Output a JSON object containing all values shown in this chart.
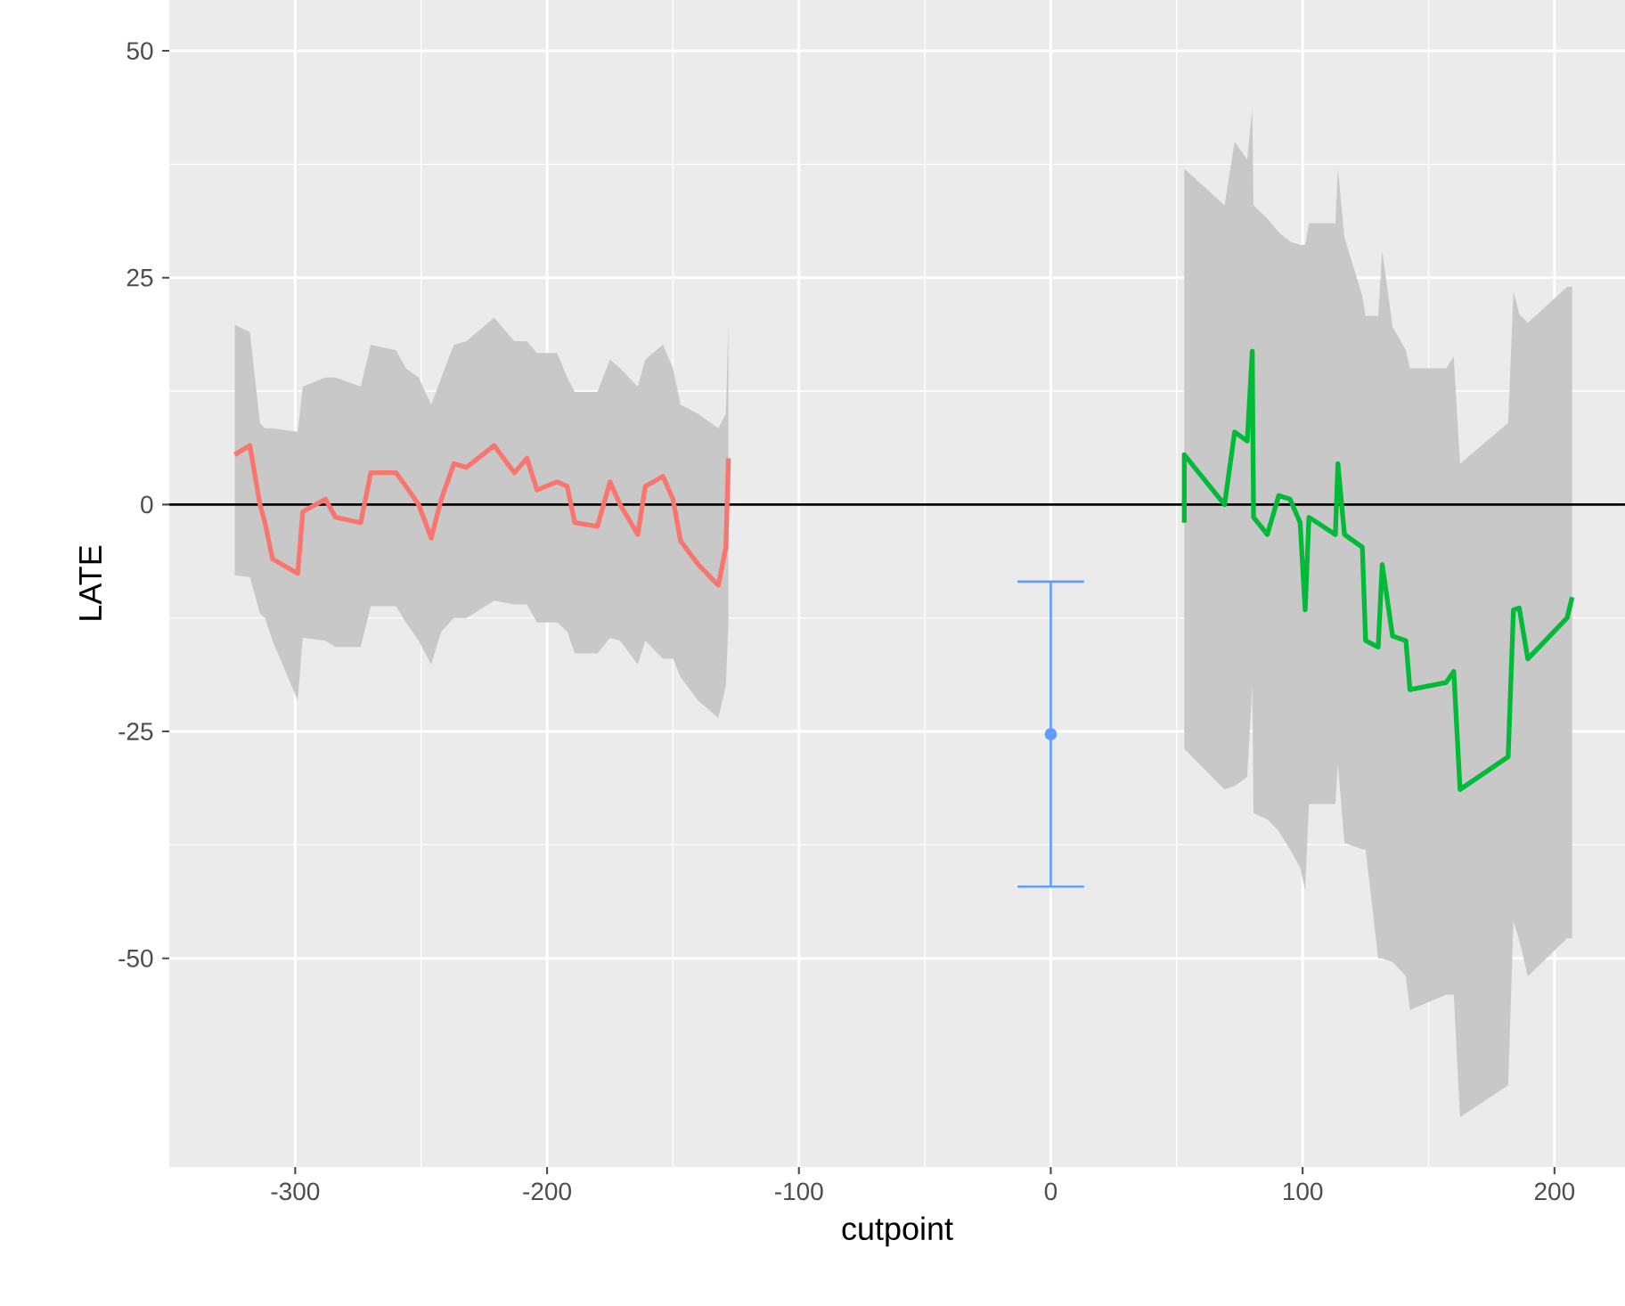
{
  "chart_data": {
    "type": "line",
    "xlabel": "cutpoint",
    "ylabel": "LATE",
    "xlim": [
      -350,
      228
    ],
    "ylim": [
      -73,
      55.6
    ],
    "xticks": [
      -300,
      -200,
      -100,
      0,
      100,
      200
    ],
    "yticks": [
      -50,
      -25,
      0,
      25,
      50
    ],
    "grid": true,
    "ref_lines": [
      {
        "axis": "y",
        "value": 0,
        "color": "#000000"
      }
    ],
    "series": [
      {
        "color": "#f8766d",
        "marker": "none",
        "x": [
          -324,
          -318,
          -314,
          -312,
          -309,
          -299,
          -297,
          -288,
          -284,
          -274,
          -270,
          -260,
          -256,
          -251,
          -246,
          -242,
          -237,
          -232,
          -221,
          -213,
          -208,
          -204,
          -196,
          -192,
          -189,
          -180,
          -175,
          -171,
          -164,
          -161,
          -154,
          -150,
          -147,
          -140,
          -132,
          -129,
          -128
        ],
        "values": [
          5.5,
          6.5,
          0,
          -2,
          -6,
          -7.6,
          -0.8,
          0.6,
          -1.4,
          -2,
          3.5,
          3.5,
          2,
          0,
          -3.7,
          0.6,
          4.5,
          4.1,
          6.5,
          3.5,
          5.1,
          1.6,
          2.5,
          2,
          -2,
          -2.4,
          2.5,
          0,
          -3.3,
          2,
          3.1,
          0.6,
          -4,
          -6.6,
          -8.9,
          -4.7,
          5.1
        ],
        "upper": [
          19.8,
          19,
          9,
          8.4,
          8.4,
          8,
          13,
          14,
          14,
          13,
          17.6,
          17,
          15,
          14,
          11,
          14,
          17.6,
          18,
          20.6,
          18,
          18,
          16.7,
          16.7,
          14,
          12.4,
          12.4,
          16,
          15,
          13,
          16,
          17.6,
          15,
          11,
          10,
          8.4,
          10,
          20
        ],
        "lower": [
          -7.8,
          -8,
          -12,
          -12.5,
          -15,
          -21.6,
          -14.7,
          -15,
          -15.7,
          -15.7,
          -11.2,
          -11.2,
          -13,
          -15,
          -17.6,
          -14,
          -12.5,
          -12.5,
          -10.6,
          -11,
          -11,
          -13,
          -13,
          -14,
          -16.4,
          -16.4,
          -14.7,
          -15,
          -17.6,
          -15,
          -17,
          -17,
          -19,
          -21.6,
          -23.5,
          -20,
          -13
        ]
      },
      {
        "color": "#00ba38",
        "marker": "none",
        "x": [
          53,
          53,
          69,
          73,
          78,
          80,
          80.5,
          86,
          90.5,
          95,
          99,
          101,
          102.5,
          113,
          114,
          116.6,
          123.7,
          125,
          130,
          131.6,
          135.7,
          141,
          142.6,
          157,
          160,
          162.5,
          181.6,
          183.7,
          186,
          189.4,
          205,
          207
        ],
        "values": [
          -2,
          5.5,
          0,
          8,
          7,
          16.9,
          -1.4,
          -3.3,
          1,
          0.6,
          -2,
          -11.6,
          -1.4,
          -3.3,
          4.5,
          -3.3,
          -4.7,
          -15,
          -15.7,
          -6.6,
          -14.5,
          -15,
          -20.4,
          -19.6,
          -18.4,
          -31.4,
          -27.8,
          -11.6,
          -11.4,
          -17,
          -12.5,
          -10.2
        ],
        "upper": [
          37,
          37,
          33,
          40,
          38,
          43.7,
          33,
          31.5,
          30,
          29,
          28.6,
          28.6,
          31,
          31,
          37,
          29.4,
          23,
          20.8,
          20.8,
          28,
          19.6,
          17,
          15,
          15,
          16.3,
          4.5,
          9,
          23.5,
          21,
          20,
          24,
          24
        ],
        "lower": [
          -26.9,
          -26.9,
          -31.4,
          -31,
          -30,
          -20,
          -34,
          -34.7,
          -36,
          -38,
          -40,
          -42.5,
          -33,
          -33,
          -28.6,
          -37.3,
          -38,
          -38,
          -50,
          -50,
          -50.4,
          -52,
          -55.7,
          -54,
          -54,
          -67.5,
          -64,
          -45.9,
          -48,
          -52,
          -47.8,
          -47.8
        ]
      },
      {
        "type": "scatter",
        "color": "#619cff",
        "marker": "circle",
        "x": [
          0
        ],
        "values": [
          -25.3
        ],
        "errors": [
          16.8
        ]
      }
    ]
  }
}
